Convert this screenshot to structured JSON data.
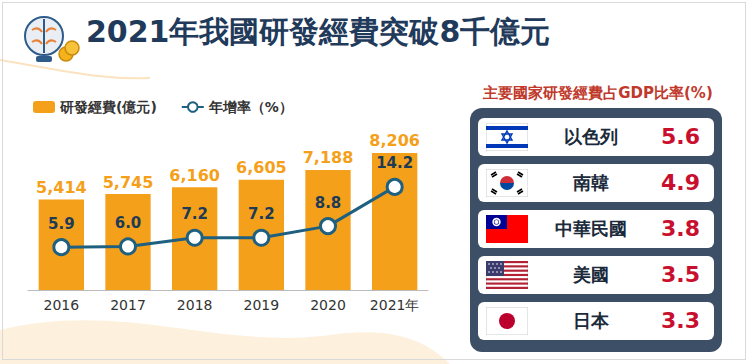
{
  "header": {
    "title": "2021年我國研發經費突破8千億元"
  },
  "chart_data": {
    "type": "bar",
    "categories": [
      "2016",
      "2017",
      "2018",
      "2019",
      "2020",
      "2021年"
    ],
    "series": [
      {
        "name": "研發經費(億元)",
        "type": "bar",
        "color": "#f5a01a",
        "values": [
          5414,
          5745,
          6160,
          6605,
          7188,
          8206
        ],
        "value_labels": [
          "5,414",
          "5,745",
          "6,160",
          "6,605",
          "7,188",
          "8,206"
        ]
      },
      {
        "name": "年增率（%）",
        "type": "line",
        "axis": "y2",
        "color": "#1f6080",
        "marker": "circle",
        "line_style": "solid",
        "values": [
          5.9,
          6.0,
          7.2,
          7.2,
          8.8,
          14.2
        ],
        "value_labels": [
          "5.9",
          "6.0",
          "7.2",
          "7.2",
          "8.8",
          "14.2"
        ]
      }
    ],
    "ylim": [
      0,
      10000
    ],
    "yticks": [
      0,
      10000
    ],
    "y2lim": [
      0,
      23
    ],
    "y2ticks": [
      0,
      23
    ],
    "data_labels": true,
    "legend": "top-left",
    "grid": false,
    "tick_labels": "x"
  },
  "ranking": {
    "title": "主要國家研發經費占GDP比率(%)",
    "rows": [
      {
        "country": "以色列",
        "value": 5.6
      },
      {
        "country": "南韓",
        "value": 4.9
      },
      {
        "country": "中華民國",
        "value": 3.8
      },
      {
        "country": "美國",
        "value": 3.5
      },
      {
        "country": "日本",
        "value": 3.3
      }
    ]
  }
}
